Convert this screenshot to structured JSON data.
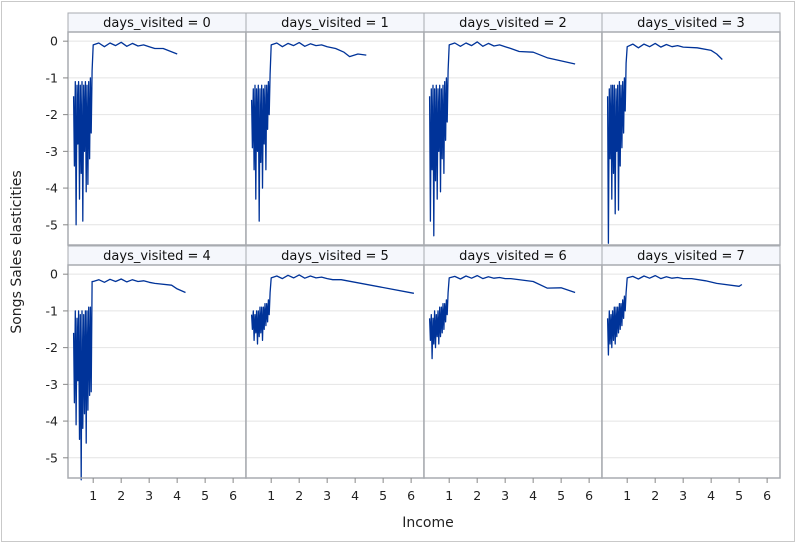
{
  "chart_data": {
    "type": "line",
    "layout": "panel 2x4",
    "xlabel": "Income",
    "ylabel": "Songs Sales elasticities",
    "xlim": [
      0.1,
      6.46
    ],
    "ylim": [
      -5.55,
      0.25
    ],
    "xticks": [
      1,
      2,
      3,
      4,
      5,
      6
    ],
    "yticks": [
      0,
      -1,
      -2,
      -3,
      -4,
      -5
    ],
    "grid": "horizontal",
    "line_color": "#003399",
    "panels": [
      {
        "label": "days_visited = 0",
        "x": [
          0.3,
          0.33,
          0.36,
          0.39,
          0.42,
          0.45,
          0.48,
          0.51,
          0.54,
          0.57,
          0.6,
          0.63,
          0.66,
          0.69,
          0.72,
          0.75,
          0.78,
          0.81,
          0.84,
          0.87,
          0.9,
          0.93,
          0.96,
          1.0,
          1.2,
          1.4,
          1.6,
          1.8,
          2.0,
          2.2,
          2.4,
          2.6,
          2.8,
          3.0,
          3.2,
          3.5,
          4.0
        ],
        "y": [
          -1.5,
          -3.4,
          -1.1,
          -5.0,
          -1.2,
          -2.8,
          -1.1,
          -4.3,
          -1.2,
          -3.6,
          -1.1,
          -4.9,
          -1.2,
          -3.0,
          -1.1,
          -4.1,
          -1.2,
          -3.9,
          -1.1,
          -3.2,
          -1.0,
          -2.5,
          -0.8,
          -0.1,
          -0.05,
          -0.15,
          -0.05,
          -0.12,
          -0.03,
          -0.14,
          -0.06,
          -0.13,
          -0.1,
          -0.15,
          -0.2,
          -0.2,
          -0.35
        ]
      },
      {
        "label": "days_visited = 1",
        "x": [
          0.3,
          0.33,
          0.36,
          0.39,
          0.42,
          0.45,
          0.48,
          0.51,
          0.54,
          0.57,
          0.6,
          0.63,
          0.66,
          0.69,
          0.72,
          0.75,
          0.78,
          0.81,
          0.84,
          0.87,
          0.9,
          0.93,
          0.96,
          1.0,
          1.2,
          1.4,
          1.6,
          1.8,
          2.0,
          2.2,
          2.4,
          2.6,
          2.8,
          3.0,
          3.3,
          3.6,
          3.8,
          4.1,
          4.4
        ],
        "y": [
          -1.6,
          -2.9,
          -1.3,
          -3.5,
          -1.2,
          -4.3,
          -1.3,
          -3.0,
          -1.2,
          -4.9,
          -1.3,
          -3.3,
          -1.2,
          -4.0,
          -1.3,
          -2.8,
          -1.2,
          -3.5,
          -1.2,
          -2.4,
          -1.1,
          -2.0,
          -0.9,
          -0.1,
          -0.05,
          -0.15,
          -0.06,
          -0.12,
          -0.04,
          -0.14,
          -0.07,
          -0.12,
          -0.1,
          -0.15,
          -0.2,
          -0.3,
          -0.42,
          -0.35,
          -0.38
        ]
      },
      {
        "label": "days_visited = 2",
        "x": [
          0.3,
          0.33,
          0.36,
          0.39,
          0.42,
          0.45,
          0.48,
          0.51,
          0.54,
          0.57,
          0.6,
          0.63,
          0.66,
          0.69,
          0.72,
          0.75,
          0.78,
          0.81,
          0.84,
          0.87,
          0.9,
          0.93,
          0.96,
          1.0,
          1.2,
          1.4,
          1.6,
          1.8,
          2.0,
          2.2,
          2.4,
          2.6,
          2.8,
          3.0,
          3.2,
          3.5,
          4.0,
          4.5,
          5.5
        ],
        "y": [
          -1.5,
          -4.9,
          -1.3,
          -3.5,
          -1.2,
          -5.3,
          -1.3,
          -3.8,
          -1.2,
          -4.3,
          -1.3,
          -3.0,
          -1.2,
          -4.1,
          -1.3,
          -3.2,
          -1.2,
          -3.6,
          -1.1,
          -2.7,
          -1.0,
          -2.2,
          -0.8,
          -0.1,
          -0.05,
          -0.14,
          -0.05,
          -0.12,
          -0.02,
          -0.14,
          -0.06,
          -0.13,
          -0.1,
          -0.15,
          -0.2,
          -0.28,
          -0.3,
          -0.45,
          -0.62
        ]
      },
      {
        "label": "days_visited = 3",
        "x": [
          0.3,
          0.33,
          0.36,
          0.39,
          0.42,
          0.45,
          0.48,
          0.51,
          0.54,
          0.57,
          0.6,
          0.63,
          0.66,
          0.69,
          0.72,
          0.75,
          0.78,
          0.81,
          0.84,
          0.87,
          0.9,
          0.93,
          0.96,
          1.0,
          1.2,
          1.4,
          1.6,
          1.8,
          2.0,
          2.2,
          2.4,
          2.6,
          2.8,
          3.0,
          3.5,
          4.0,
          4.2,
          4.4
        ],
        "y": [
          -1.5,
          -5.5,
          -1.3,
          -3.2,
          -1.2,
          -4.3,
          -1.2,
          -3.6,
          -1.2,
          -4.7,
          -1.3,
          -3.0,
          -1.2,
          -4.6,
          -1.1,
          -3.4,
          -1.2,
          -2.9,
          -1.1,
          -2.5,
          -1.0,
          -1.9,
          -0.6,
          -0.15,
          -0.08,
          -0.18,
          -0.08,
          -0.15,
          -0.06,
          -0.16,
          -0.09,
          -0.15,
          -0.12,
          -0.16,
          -0.18,
          -0.25,
          -0.35,
          -0.5
        ]
      },
      {
        "label": "days_visited = 4",
        "x": [
          0.3,
          0.33,
          0.36,
          0.39,
          0.42,
          0.45,
          0.48,
          0.51,
          0.54,
          0.57,
          0.6,
          0.63,
          0.66,
          0.69,
          0.72,
          0.75,
          0.78,
          0.81,
          0.84,
          0.87,
          0.9,
          0.93,
          0.96,
          1.0,
          1.2,
          1.4,
          1.6,
          1.8,
          2.0,
          2.2,
          2.4,
          2.6,
          2.8,
          3.0,
          3.2,
          3.8,
          4.0,
          4.3
        ],
        "y": [
          -1.6,
          -3.5,
          -1.0,
          -4.1,
          -1.2,
          -2.9,
          -1.0,
          -4.5,
          -1.1,
          -5.6,
          -1.0,
          -4.2,
          -1.1,
          -3.8,
          -1.0,
          -4.6,
          -1.0,
          -3.7,
          -0.9,
          -3.3,
          -0.9,
          -3.2,
          -0.2,
          -0.2,
          -0.15,
          -0.22,
          -0.14,
          -0.2,
          -0.13,
          -0.21,
          -0.15,
          -0.2,
          -0.18,
          -0.22,
          -0.25,
          -0.3,
          -0.4,
          -0.5
        ]
      },
      {
        "label": "days_visited = 5",
        "x": [
          0.3,
          0.33,
          0.36,
          0.39,
          0.42,
          0.45,
          0.48,
          0.51,
          0.54,
          0.57,
          0.6,
          0.63,
          0.66,
          0.69,
          0.72,
          0.75,
          0.78,
          0.81,
          0.84,
          0.87,
          0.9,
          0.93,
          0.96,
          1.0,
          1.2,
          1.4,
          1.6,
          1.8,
          2.0,
          2.2,
          2.4,
          2.6,
          2.8,
          3.0,
          3.2,
          3.5,
          6.1
        ],
        "y": [
          -1.1,
          -1.5,
          -1.0,
          -1.8,
          -1.1,
          -1.6,
          -1.0,
          -1.9,
          -1.0,
          -1.7,
          -0.9,
          -1.6,
          -0.9,
          -1.8,
          -0.9,
          -1.5,
          -0.8,
          -1.4,
          -0.8,
          -1.3,
          -0.7,
          -1.1,
          -0.5,
          -0.1,
          -0.05,
          -0.12,
          -0.03,
          -0.1,
          -0.02,
          -0.11,
          -0.05,
          -0.1,
          -0.08,
          -0.12,
          -0.15,
          -0.15,
          -0.52
        ]
      },
      {
        "label": "days_visited = 6",
        "x": [
          0.3,
          0.33,
          0.36,
          0.39,
          0.42,
          0.45,
          0.48,
          0.51,
          0.54,
          0.57,
          0.6,
          0.63,
          0.66,
          0.69,
          0.72,
          0.75,
          0.78,
          0.81,
          0.84,
          0.87,
          0.9,
          0.93,
          0.96,
          1.0,
          1.2,
          1.4,
          1.6,
          1.8,
          2.0,
          2.2,
          2.4,
          2.6,
          2.8,
          3.0,
          3.2,
          4.0,
          4.5,
          5.0,
          5.5
        ],
        "y": [
          -1.2,
          -1.8,
          -1.1,
          -2.3,
          -1.2,
          -1.9,
          -1.0,
          -2.0,
          -1.1,
          -1.7,
          -1.0,
          -1.9,
          -0.9,
          -1.7,
          -0.9,
          -1.6,
          -0.8,
          -1.5,
          -0.8,
          -1.3,
          -0.7,
          -1.1,
          -0.5,
          -0.1,
          -0.06,
          -0.13,
          -0.05,
          -0.11,
          -0.04,
          -0.12,
          -0.07,
          -0.11,
          -0.09,
          -0.12,
          -0.12,
          -0.2,
          -0.38,
          -0.37,
          -0.5
        ]
      },
      {
        "label": "days_visited = 7",
        "x": [
          0.3,
          0.33,
          0.36,
          0.39,
          0.42,
          0.45,
          0.48,
          0.51,
          0.54,
          0.57,
          0.6,
          0.63,
          0.66,
          0.69,
          0.72,
          0.75,
          0.78,
          0.81,
          0.84,
          0.87,
          0.9,
          0.93,
          0.96,
          1.0,
          1.2,
          1.4,
          1.6,
          1.8,
          2.0,
          2.2,
          2.4,
          2.6,
          2.8,
          3.0,
          3.3,
          3.8,
          4.2,
          5.0,
          5.1
        ],
        "y": [
          -1.2,
          -2.2,
          -1.0,
          -1.9,
          -1.1,
          -2.0,
          -1.0,
          -1.8,
          -0.9,
          -1.9,
          -0.9,
          -1.7,
          -0.9,
          -1.6,
          -0.8,
          -1.5,
          -0.8,
          -1.4,
          -0.7,
          -1.2,
          -0.6,
          -1.0,
          -0.5,
          -0.1,
          -0.06,
          -0.13,
          -0.05,
          -0.11,
          -0.04,
          -0.12,
          -0.07,
          -0.11,
          -0.09,
          -0.12,
          -0.12,
          -0.18,
          -0.25,
          -0.33,
          -0.28
        ]
      }
    ]
  }
}
